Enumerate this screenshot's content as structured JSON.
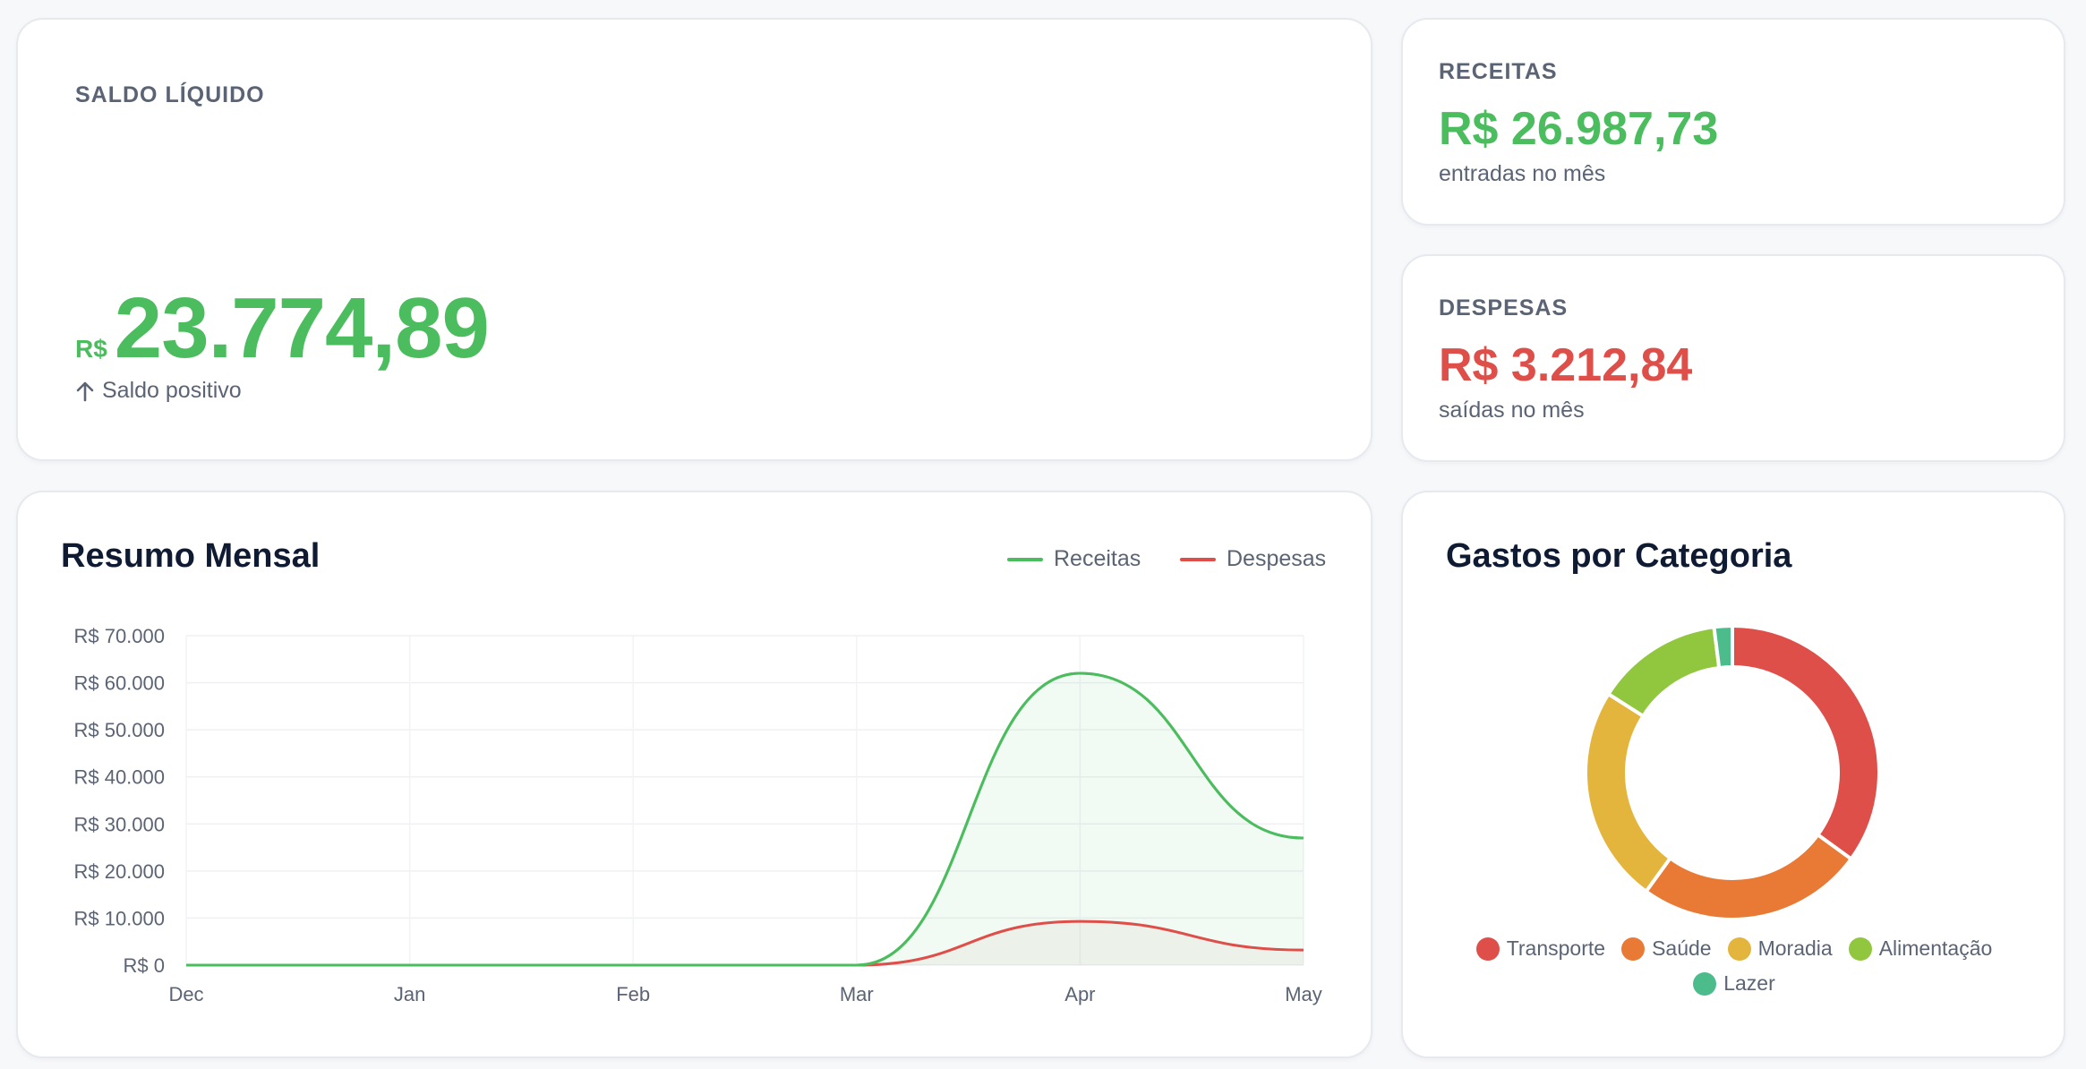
{
  "colors": {
    "income": "#4cbd5f",
    "expense": "#df4f4a",
    "muted": "#5b6474",
    "title": "#0f1b33"
  },
  "saldo": {
    "label": "SALDO LÍQUIDO",
    "currency": "R$",
    "amount": "23.774,89",
    "note": "Saldo positivo",
    "note_icon": "arrow-up-icon"
  },
  "receitas": {
    "label": "RECEITAS",
    "amount": "R$ 26.987,73",
    "sub": "entradas no mês"
  },
  "despesas": {
    "label": "DESPESAS",
    "amount": "R$ 3.212,84",
    "sub": "saídas no mês"
  },
  "resumo": {
    "title": "Resumo Mensal"
  },
  "gastos": {
    "title": "Gastos por Categoria"
  },
  "chart_data": [
    {
      "type": "area",
      "title": "Resumo Mensal",
      "categories": [
        "Dec",
        "Jan",
        "Feb",
        "Mar",
        "Apr",
        "May"
      ],
      "series": [
        {
          "name": "Receitas",
          "color": "#4cbd5f",
          "values": [
            0,
            0,
            0,
            0,
            62000,
            27000
          ]
        },
        {
          "name": "Despesas",
          "color": "#df4f4a",
          "values": [
            0,
            0,
            0,
            0,
            9300,
            3200
          ]
        }
      ],
      "ylim": [
        0,
        70000
      ],
      "yticks": [
        "R$ 0",
        "R$ 10.000",
        "R$ 20.000",
        "R$ 30.000",
        "R$ 40.000",
        "R$ 50.000",
        "R$ 60.000",
        "R$ 70.000"
      ],
      "grid": true,
      "legend": "top-right"
    },
    {
      "type": "pie",
      "title": "Gastos por Categoria",
      "labels": [
        "Transporte",
        "Saúde",
        "Moradia",
        "Alimentação",
        "Lazer"
      ],
      "values": [
        35,
        25,
        24,
        14,
        2
      ],
      "colors": [
        "#df4f4a",
        "#e97a35",
        "#e3b53c",
        "#90c73f",
        "#4dbc8c"
      ],
      "legend": "bottom"
    }
  ]
}
